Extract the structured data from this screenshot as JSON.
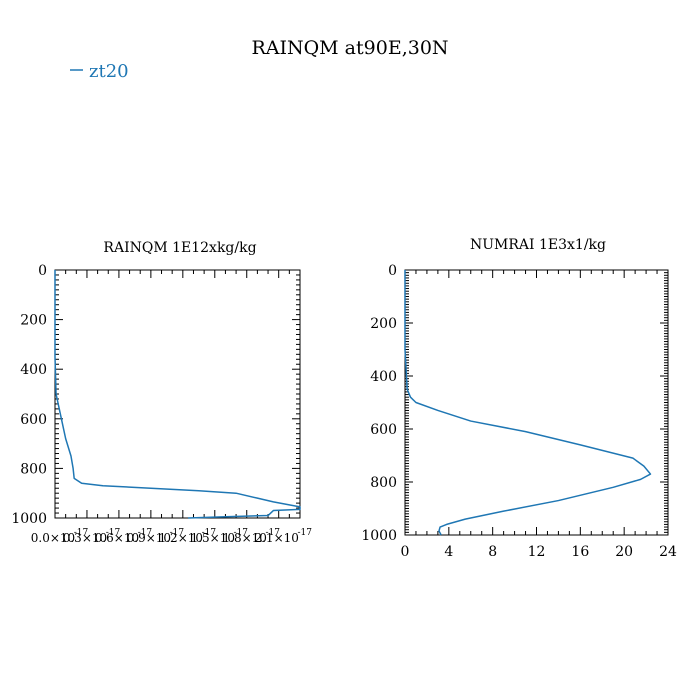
{
  "figure": {
    "title": "RAINQM at90E,30N",
    "line_color": "#1f77b4",
    "legend_entry": "zt20"
  },
  "chart_data": [
    {
      "type": "line",
      "title": "RAINQM  1E12xkg/kg",
      "xlabel": "",
      "ylabel": "",
      "xlim": [
        0,
        2.3e-17
      ],
      "ylim": [
        1000,
        0
      ],
      "x_tick_labels": [
        "0.0×10",
        "0.3×10",
        "0.6×10",
        "0.9×10",
        "1.2×10",
        "1.5×10",
        "1.8×10",
        "2.1×10"
      ],
      "x_tick_exponent": "-17",
      "y_tick_labels": [
        "0",
        "200",
        "400",
        "600",
        "800",
        "1000"
      ],
      "series": [
        {
          "name": "zt20",
          "x": [
            0,
            0,
            1e-19,
            6e-19,
            1e-18,
            1.5e-18,
            1.7e-18,
            1.8e-18,
            2.5e-18,
            4.5e-18,
            9e-18,
            1.35e-17,
            1.7e-17,
            1.9e-17,
            2.05e-17,
            2.3e-17,
            2.3e-17,
            2.05e-17,
            2e-17,
            1.6e-17,
            1.25e-17
          ],
          "y": [
            0,
            350,
            500,
            600,
            680,
            750,
            800,
            840,
            860,
            870,
            880,
            890,
            900,
            920,
            935,
            955,
            965,
            970,
            990,
            995,
            1000
          ]
        }
      ]
    },
    {
      "type": "line",
      "title": "NUMRAI  1E3x1/kg",
      "xlabel": "",
      "ylabel": "",
      "xlim": [
        0,
        24
      ],
      "ylim": [
        1000,
        0
      ],
      "x_tick_labels": [
        "0",
        "4",
        "8",
        "12",
        "16",
        "20",
        "24"
      ],
      "y_tick_labels": [
        "0",
        "200",
        "400",
        "600",
        "800",
        "1000"
      ],
      "series": [
        {
          "name": "zt20",
          "x": [
            0,
            0,
            0.2,
            0.5,
            1,
            3,
            6,
            11,
            16,
            20.8,
            21.8,
            22.4,
            21.5,
            19,
            14,
            9,
            5.5,
            3.8,
            3.2,
            3.1,
            3.3
          ],
          "y": [
            0,
            300,
            450,
            480,
            500,
            530,
            570,
            610,
            660,
            710,
            740,
            770,
            790,
            820,
            870,
            910,
            940,
            960,
            970,
            985,
            1000
          ]
        }
      ]
    }
  ]
}
